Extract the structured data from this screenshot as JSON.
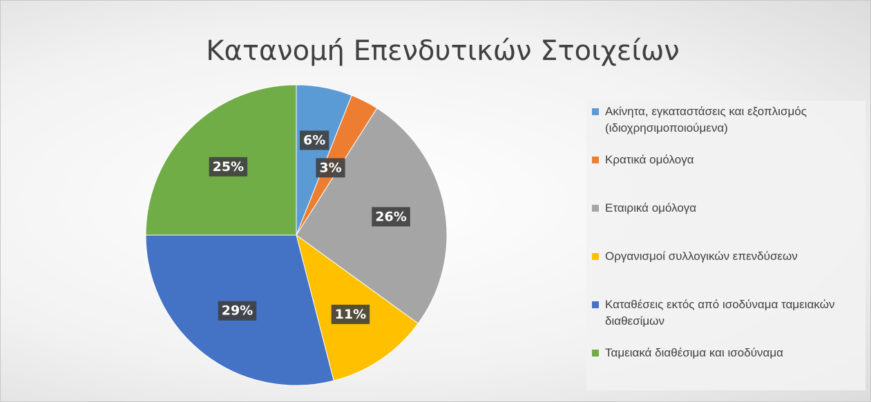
{
  "chart_data": {
    "type": "pie",
    "title": "Κατανομή Επενδυτικών Στοιχείων",
    "categories": [
      "Ακίνητα, εγκαταστάσεις και εξοπλισμός (ιδιοχρησιμοποιούμενα)",
      "Κρατικά ομόλογα",
      "Εταιρικά ομόλογα",
      "Οργανισμοί συλλογικών επενδύσεων",
      "Καταθέσεις εκτός από ισοδύναμα ταμειακών διαθεσίμων",
      "Ταμειακά διαθέσιμα και ισοδύναμα"
    ],
    "values": [
      6,
      3,
      26,
      11,
      29,
      25
    ],
    "value_labels": [
      "6%",
      "3%",
      "26%",
      "11%",
      "29%",
      "25%"
    ],
    "colors": [
      "#5b9bd5",
      "#ed7d31",
      "#a5a5a5",
      "#ffc000",
      "#4472c4",
      "#70ad47"
    ],
    "legend": "right"
  }
}
